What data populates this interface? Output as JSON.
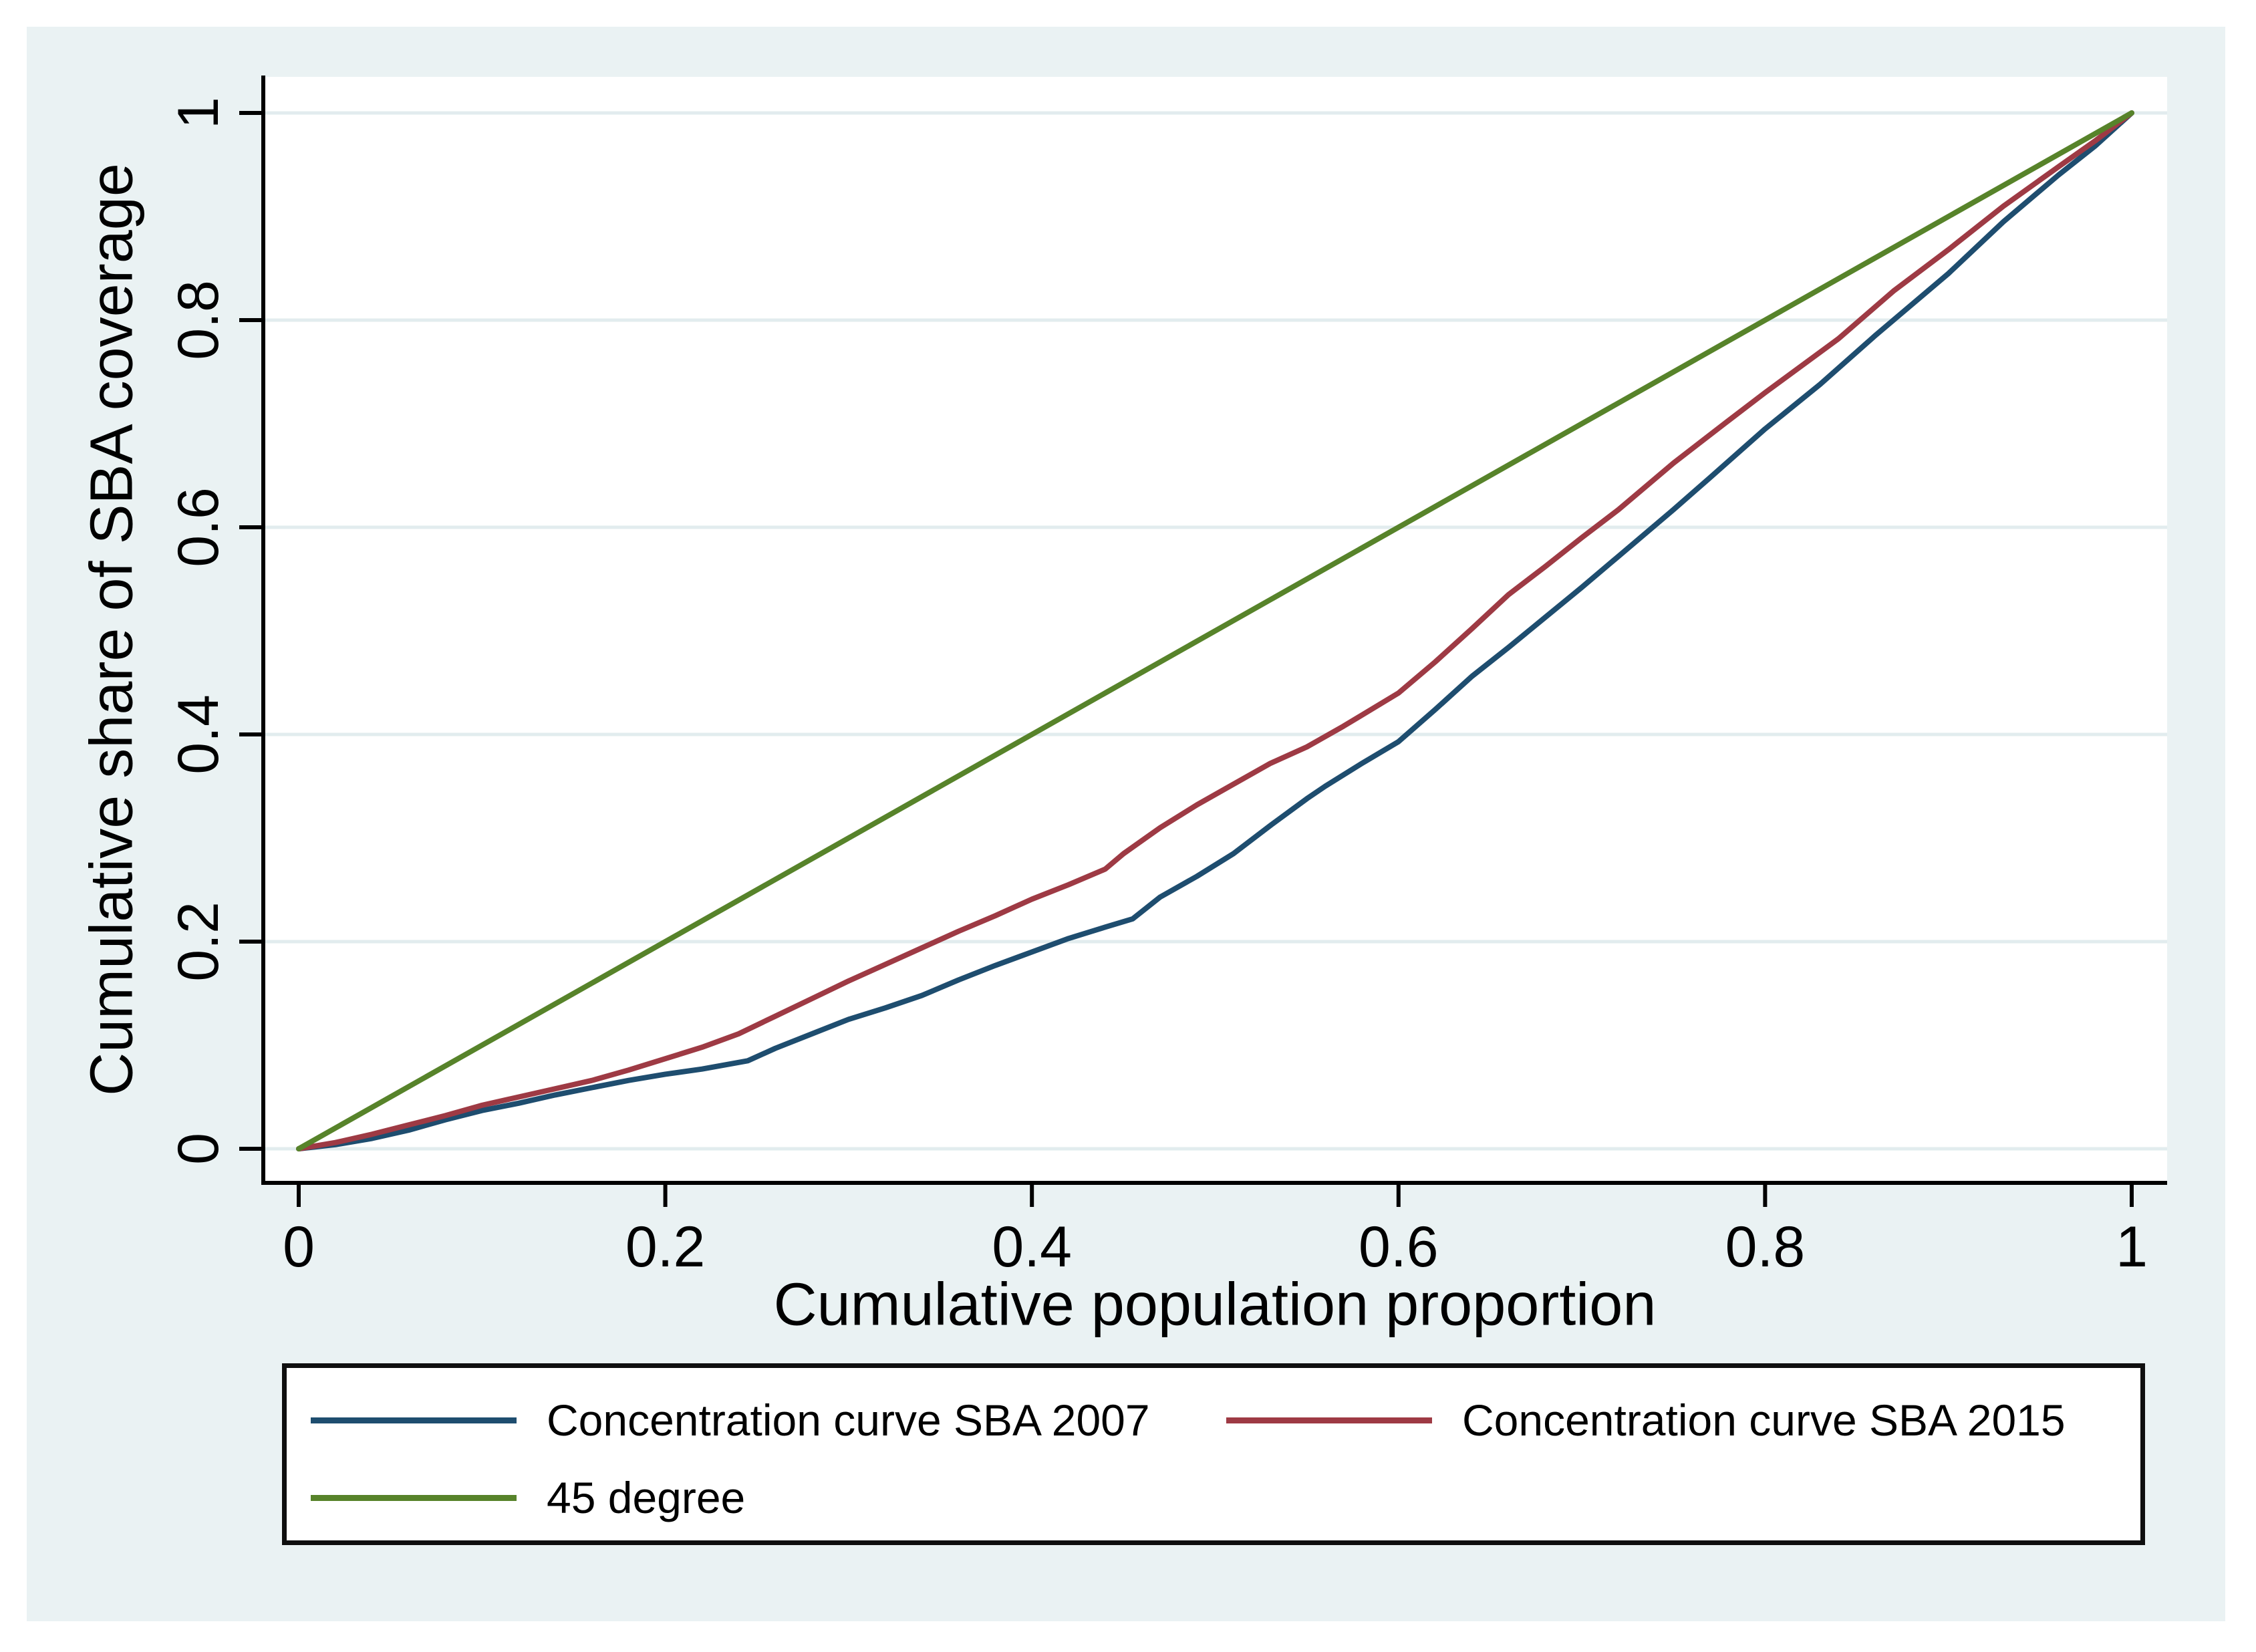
{
  "figure": {
    "background_color": "#EAF2F3",
    "plot_background": "#FFFFFF",
    "grid_color": "#E2ECEE",
    "axis_color": "#000000",
    "legend_border_color": "#0F0F0F"
  },
  "chart_data": {
    "type": "line",
    "title": "",
    "xlabel": "Cumulative population proportion",
    "ylabel": "Cumulative share of SBA coverage",
    "xlim": [
      0,
      1
    ],
    "ylim": [
      0,
      1
    ],
    "grid": "horizontal",
    "legend_position": "bottom",
    "xticks": {
      "values": [
        0,
        0.2,
        0.4,
        0.6,
        0.8,
        1
      ],
      "labels": [
        "0",
        "0.2",
        "0.4",
        "0.6",
        "0.8",
        "1"
      ]
    },
    "yticks": {
      "values": [
        0,
        0.2,
        0.4,
        0.6,
        0.8,
        1
      ],
      "labels": [
        "0",
        "0.2",
        "0.4",
        "0.6",
        "0.8",
        "1"
      ]
    },
    "series": [
      {
        "name": "Concentration curve SBA 2007",
        "color": "#1E4D6F",
        "points": [
          [
            0,
            0
          ],
          [
            0.02,
            0.004
          ],
          [
            0.04,
            0.01
          ],
          [
            0.06,
            0.018
          ],
          [
            0.08,
            0.028
          ],
          [
            0.1,
            0.037
          ],
          [
            0.12,
            0.044
          ],
          [
            0.14,
            0.052
          ],
          [
            0.16,
            0.059
          ],
          [
            0.18,
            0.066
          ],
          [
            0.2,
            0.072
          ],
          [
            0.22,
            0.077
          ],
          [
            0.245,
            0.085
          ],
          [
            0.26,
            0.097
          ],
          [
            0.28,
            0.111
          ],
          [
            0.3,
            0.125
          ],
          [
            0.32,
            0.136
          ],
          [
            0.34,
            0.148
          ],
          [
            0.36,
            0.163
          ],
          [
            0.38,
            0.177
          ],
          [
            0.4,
            0.19
          ],
          [
            0.42,
            0.203
          ],
          [
            0.44,
            0.214
          ],
          [
            0.455,
            0.222
          ],
          [
            0.47,
            0.243
          ],
          [
            0.49,
            0.263
          ],
          [
            0.51,
            0.285
          ],
          [
            0.53,
            0.312
          ],
          [
            0.55,
            0.338
          ],
          [
            0.56,
            0.35
          ],
          [
            0.58,
            0.372
          ],
          [
            0.6,
            0.393
          ],
          [
            0.62,
            0.424
          ],
          [
            0.64,
            0.456
          ],
          [
            0.66,
            0.484
          ],
          [
            0.68,
            0.513
          ],
          [
            0.7,
            0.542
          ],
          [
            0.72,
            0.572
          ],
          [
            0.75,
            0.617
          ],
          [
            0.77,
            0.648
          ],
          [
            0.8,
            0.695
          ],
          [
            0.83,
            0.738
          ],
          [
            0.86,
            0.785
          ],
          [
            0.9,
            0.845
          ],
          [
            0.93,
            0.895
          ],
          [
            0.96,
            0.94
          ],
          [
            0.98,
            0.968
          ],
          [
            1,
            1
          ]
        ]
      },
      {
        "name": "Concentration curve SBA 2015",
        "color": "#9E3A44",
        "points": [
          [
            0,
            0
          ],
          [
            0.02,
            0.006
          ],
          [
            0.04,
            0.014
          ],
          [
            0.06,
            0.023
          ],
          [
            0.08,
            0.032
          ],
          [
            0.1,
            0.042
          ],
          [
            0.12,
            0.05
          ],
          [
            0.14,
            0.058
          ],
          [
            0.16,
            0.066
          ],
          [
            0.18,
            0.076
          ],
          [
            0.2,
            0.087
          ],
          [
            0.22,
            0.098
          ],
          [
            0.24,
            0.111
          ],
          [
            0.26,
            0.128
          ],
          [
            0.28,
            0.145
          ],
          [
            0.3,
            0.162
          ],
          [
            0.32,
            0.178
          ],
          [
            0.34,
            0.194
          ],
          [
            0.36,
            0.21
          ],
          [
            0.38,
            0.225
          ],
          [
            0.4,
            0.241
          ],
          [
            0.42,
            0.255
          ],
          [
            0.44,
            0.27
          ],
          [
            0.45,
            0.285
          ],
          [
            0.47,
            0.31
          ],
          [
            0.49,
            0.332
          ],
          [
            0.51,
            0.352
          ],
          [
            0.53,
            0.372
          ],
          [
            0.55,
            0.388
          ],
          [
            0.57,
            0.408
          ],
          [
            0.6,
            0.44
          ],
          [
            0.62,
            0.47
          ],
          [
            0.64,
            0.502
          ],
          [
            0.66,
            0.535
          ],
          [
            0.68,
            0.562
          ],
          [
            0.7,
            0.59
          ],
          [
            0.72,
            0.617
          ],
          [
            0.75,
            0.662
          ],
          [
            0.78,
            0.703
          ],
          [
            0.8,
            0.73
          ],
          [
            0.84,
            0.782
          ],
          [
            0.87,
            0.828
          ],
          [
            0.9,
            0.868
          ],
          [
            0.93,
            0.91
          ],
          [
            0.96,
            0.948
          ],
          [
            0.98,
            0.973
          ],
          [
            1,
            1
          ]
        ]
      },
      {
        "name": "45 degree",
        "color": "#57832A",
        "points": [
          [
            0,
            0
          ],
          [
            1,
            1
          ]
        ]
      }
    ]
  },
  "legend": {
    "items": [
      {
        "label": "Concentration curve SBA 2007"
      },
      {
        "label": "Concentration curve SBA 2015"
      },
      {
        "label": "45 degree"
      }
    ]
  }
}
